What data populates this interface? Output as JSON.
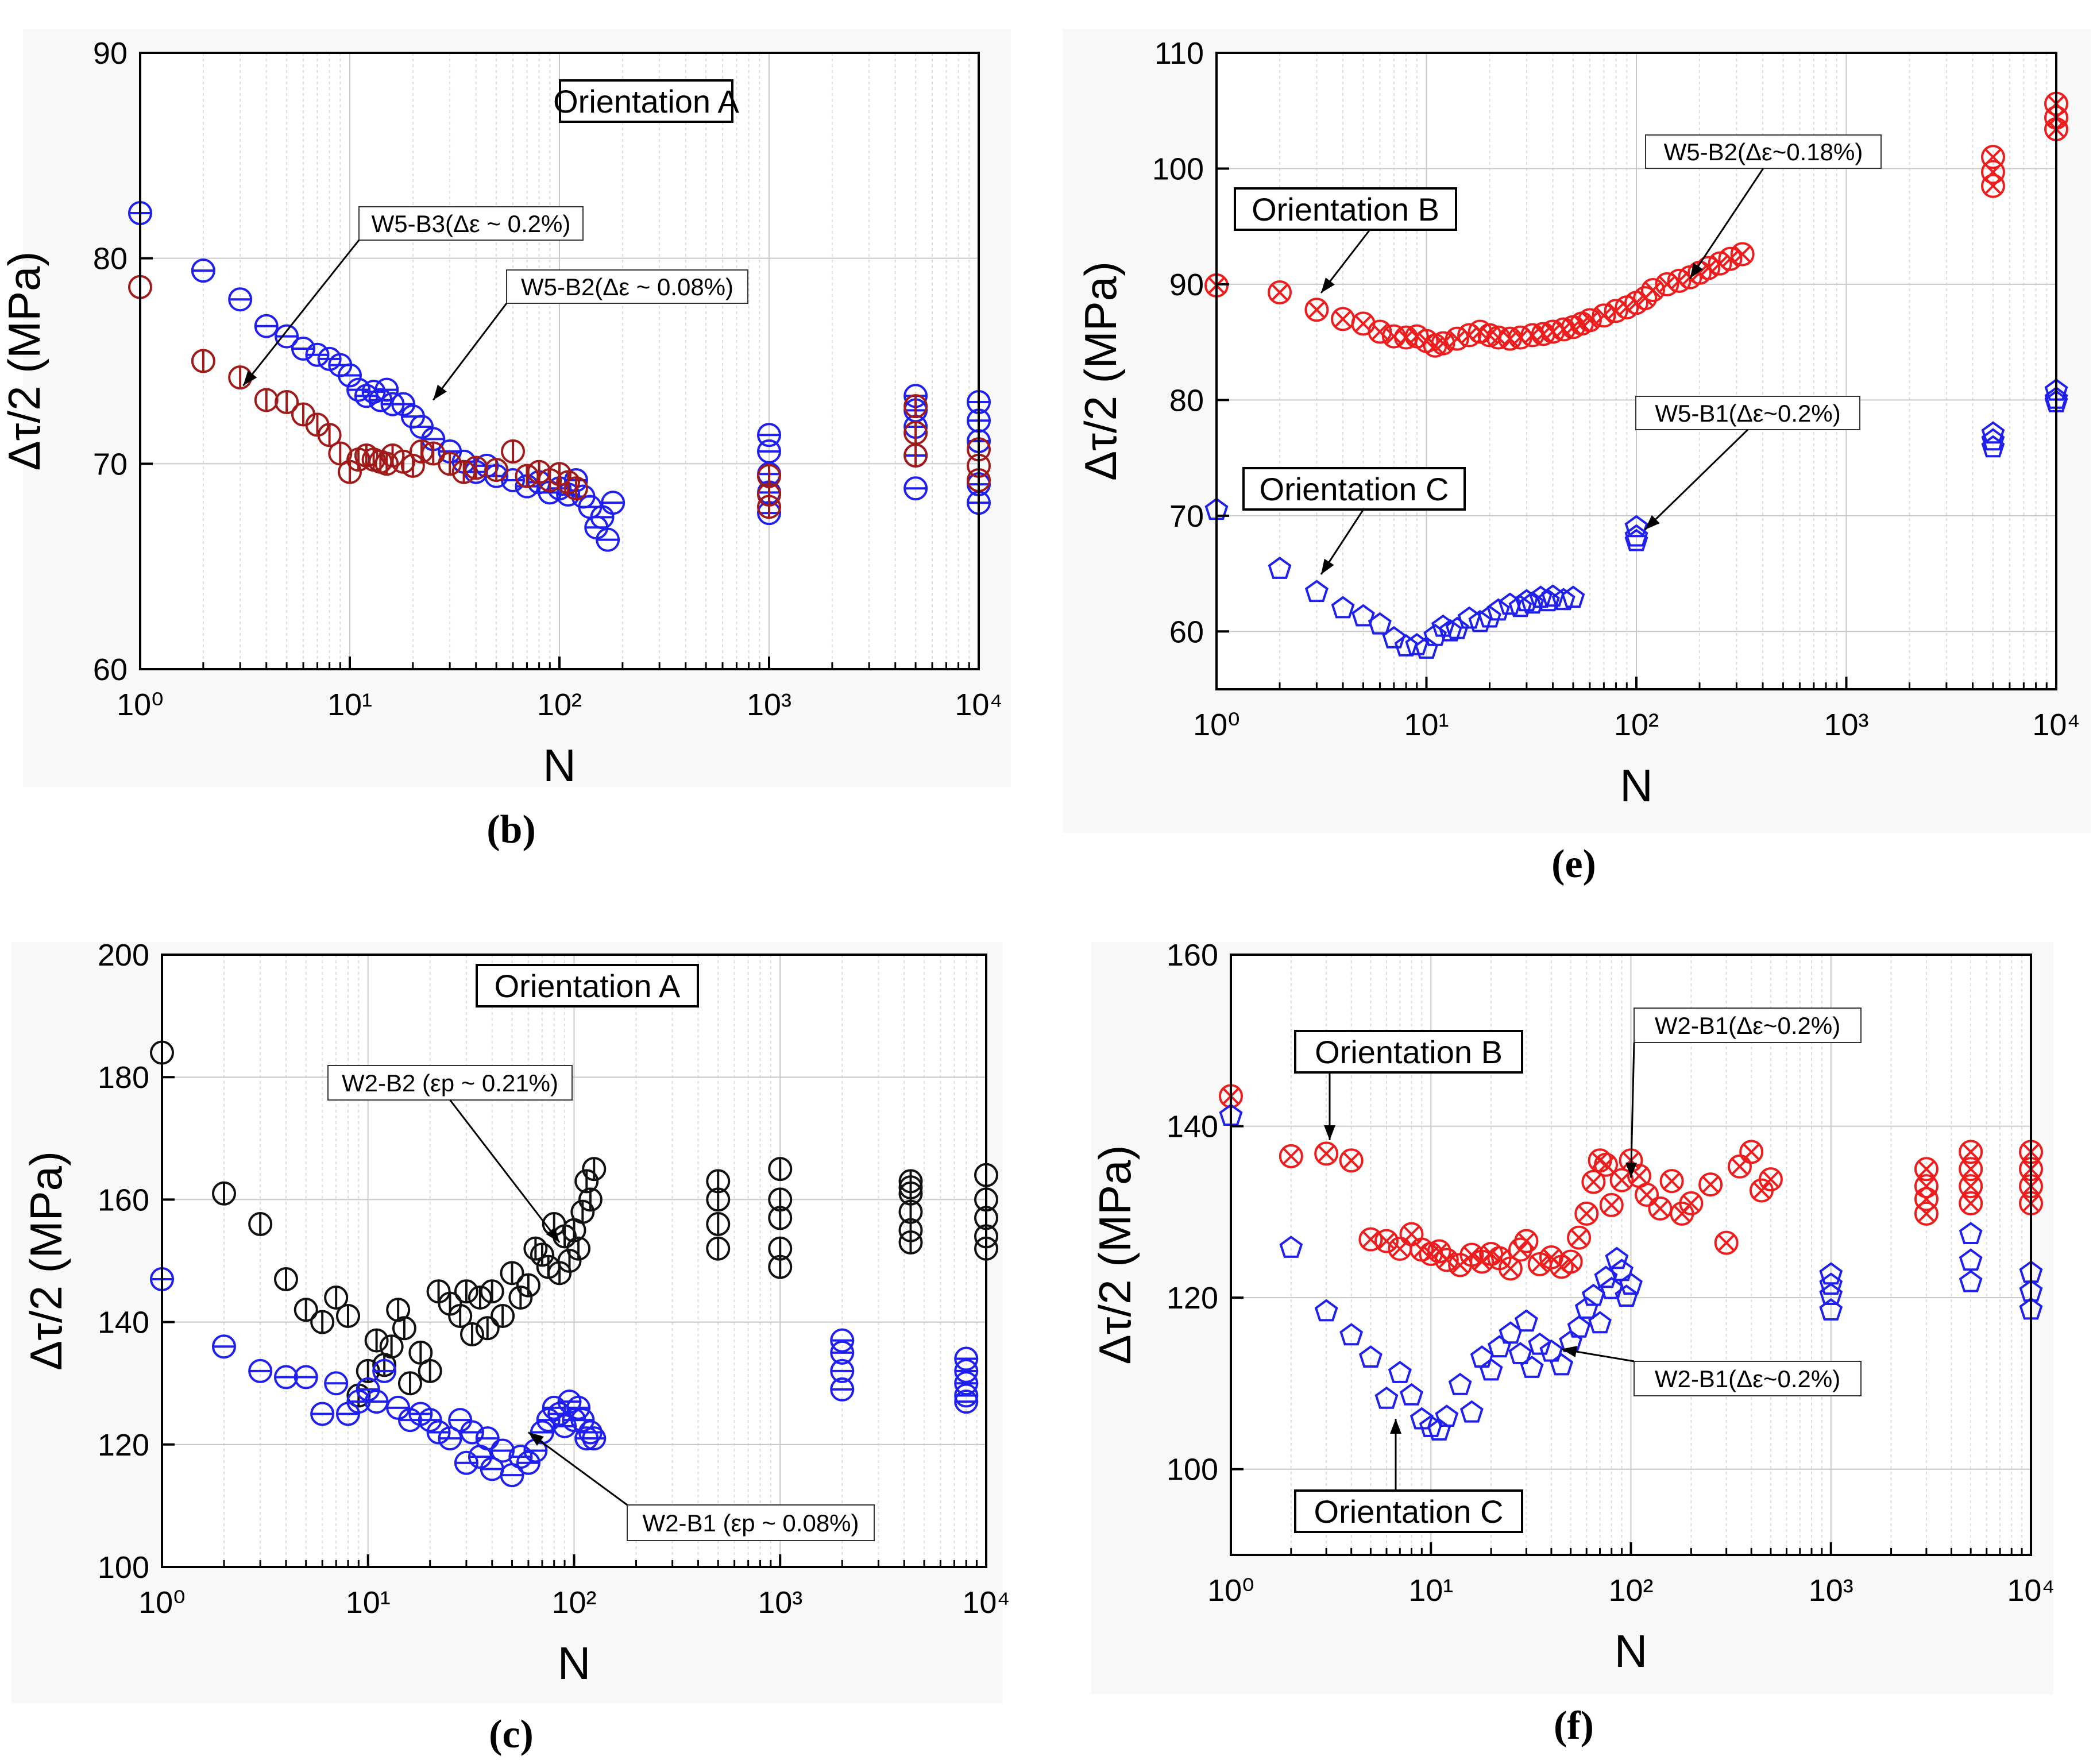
{
  "figure": {
    "captions": [
      "(b)",
      "(e)",
      "(c)",
      "(f)"
    ]
  },
  "chart_data": [
    {
      "id": "b",
      "caption": "(b)",
      "type": "scatter",
      "xscale": "log",
      "xlabel": "N",
      "ylabel": "Δτ/2 (MPa)",
      "xlim": [
        1,
        10000
      ],
      "ylim": [
        60,
        90
      ],
      "yticks": [
        60,
        70,
        80,
        90
      ],
      "xtick_labels": [
        "10⁰",
        "10¹",
        "10²",
        "10³",
        "10⁴"
      ],
      "grid": true,
      "boxed_label": "Orientation A",
      "annotations": [
        {
          "text": "W5-B3(Δε ~ 0.2%)",
          "points_to": [
            3.1,
            73.8
          ]
        },
        {
          "text": "W5-B2(Δε ~ 0.08%)",
          "points_to": [
            25,
            73.1
          ]
        }
      ],
      "series": [
        {
          "name": "W5-B2 (Δε ~ 0.08%)",
          "color": "#1f1fef",
          "marker": "circle-hbar",
          "x": [
            1,
            2,
            3,
            4,
            5,
            6,
            7,
            8,
            9,
            10,
            11,
            12,
            13,
            14,
            15,
            16,
            18,
            20,
            22,
            25,
            30,
            35,
            40,
            45,
            50,
            60,
            70,
            80,
            90,
            100,
            110,
            120,
            130,
            140,
            150,
            160,
            170,
            180,
            1000,
            1000,
            1000,
            1000,
            1000,
            5000,
            5000,
            5000,
            5000,
            5000,
            10000,
            10000,
            10000,
            10000,
            10000
          ],
          "y": [
            82.2,
            79.4,
            78.0,
            76.7,
            76.2,
            75.6,
            75.3,
            75.1,
            74.8,
            74.3,
            73.6,
            73.3,
            73.5,
            73.1,
            73.6,
            72.9,
            72.9,
            72.3,
            71.8,
            71.2,
            70.6,
            70.1,
            69.6,
            69.9,
            69.4,
            69.2,
            68.9,
            69.1,
            68.6,
            68.8,
            68.5,
            69.2,
            68.4,
            67.9,
            66.9,
            67.4,
            66.3,
            68.1,
            71.4,
            70.6,
            69.5,
            68.6,
            67.6,
            73.3,
            72.6,
            71.8,
            70.4,
            68.8,
            73.0,
            72.1,
            71.1,
            69.0,
            68.1
          ]
        },
        {
          "name": "W5-B3 (Δε ~ 0.2%)",
          "color": "#a01a1a",
          "marker": "circle-vbar",
          "x": [
            1,
            2,
            3,
            4,
            5,
            6,
            7,
            8,
            9,
            10,
            11,
            12,
            13,
            14,
            15,
            16,
            18,
            20,
            22,
            25,
            30,
            35,
            40,
            50,
            60,
            70,
            80,
            90,
            100,
            110,
            120,
            1000,
            1000,
            1000,
            5000,
            5000,
            5000,
            10000,
            10000,
            10000
          ],
          "y": [
            78.6,
            75.0,
            74.2,
            73.1,
            73.0,
            72.4,
            71.9,
            71.4,
            70.5,
            69.6,
            70.2,
            70.4,
            70.2,
            70.1,
            70.0,
            70.4,
            70.1,
            69.9,
            70.6,
            70.5,
            70.0,
            69.6,
            69.8,
            69.7,
            70.6,
            69.4,
            69.6,
            69.2,
            69.5,
            69.1,
            68.8,
            69.4,
            68.5,
            67.9,
            72.8,
            71.5,
            70.4,
            70.7,
            69.9,
            69.2
          ]
        }
      ]
    },
    {
      "id": "e",
      "caption": "(e)",
      "type": "scatter",
      "xscale": "log",
      "xlabel": "N",
      "ylabel": "Δτ/2 (MPa)",
      "xlim": [
        1,
        10000
      ],
      "ylim": [
        55,
        110
      ],
      "yticks": [
        60,
        70,
        80,
        90,
        100,
        110
      ],
      "xtick_labels": [
        "10⁰",
        "10¹",
        "10²",
        "10³",
        "10⁴"
      ],
      "grid": true,
      "boxed_labels": [
        "Orientation B",
        "Orientation C"
      ],
      "annotations": [
        {
          "text": "W5-B2(Δε~0.18%)",
          "points_to": [
            180,
            90.5
          ]
        },
        {
          "text": "W5-B1(Δε~0.2%)",
          "points_to": [
            110,
            68.8
          ]
        }
      ],
      "series": [
        {
          "name": "W5-B2 (Δε~0.18%)",
          "color": "#ee1c1c",
          "marker": "circle-x",
          "x": [
            1,
            2,
            3,
            4,
            5,
            6,
            7,
            8,
            9,
            10,
            11,
            12,
            14,
            16,
            18,
            20,
            22,
            25,
            28,
            32,
            36,
            40,
            45,
            50,
            55,
            60,
            70,
            80,
            90,
            100,
            110,
            120,
            140,
            160,
            180,
            200,
            220,
            250,
            280,
            320,
            5000,
            5000,
            5000,
            10000,
            10000,
            10000
          ],
          "y": [
            89.9,
            89.3,
            87.8,
            87.0,
            86.6,
            85.9,
            85.5,
            85.4,
            85.5,
            85.1,
            84.7,
            84.9,
            85.3,
            85.6,
            85.9,
            85.6,
            85.4,
            85.3,
            85.4,
            85.6,
            85.7,
            85.9,
            86.1,
            86.3,
            86.6,
            86.9,
            87.3,
            87.7,
            88.0,
            88.4,
            88.8,
            89.5,
            90.0,
            90.3,
            90.6,
            91.0,
            91.4,
            91.8,
            92.2,
            92.6,
            101.0,
            99.7,
            98.5,
            105.6,
            104.4,
            103.4
          ]
        },
        {
          "name": "W5-B1 (Δε~0.2%)",
          "color": "#1f1fef",
          "marker": "pentagon",
          "x": [
            1,
            2,
            3,
            4,
            5,
            6,
            7,
            8,
            9,
            10,
            11,
            12,
            13,
            14,
            16,
            18,
            20,
            22,
            25,
            28,
            30,
            32,
            35,
            38,
            40,
            45,
            50,
            100,
            100,
            100,
            5000,
            5000,
            5000,
            10000,
            10000,
            10000
          ],
          "y": [
            70.5,
            65.4,
            63.4,
            62.0,
            61.3,
            60.6,
            59.4,
            58.7,
            58.8,
            58.5,
            59.6,
            60.4,
            60.0,
            60.2,
            61.1,
            60.8,
            61.2,
            61.8,
            62.3,
            62.1,
            62.6,
            62.4,
            62.9,
            62.6,
            63.0,
            62.7,
            62.9,
            69.0,
            68.2,
            67.8,
            77.1,
            76.5,
            75.9,
            80.8,
            80.1,
            79.8
          ]
        }
      ]
    },
    {
      "id": "c",
      "caption": "(c)",
      "type": "scatter",
      "xscale": "log",
      "xlabel": "N",
      "ylabel": "Δτ/2 (MPa)",
      "xlim": [
        1,
        10000
      ],
      "ylim": [
        100,
        200
      ],
      "yticks": [
        100,
        120,
        140,
        160,
        180,
        200
      ],
      "xtick_labels": [
        "10⁰",
        "10¹",
        "10²",
        "10³",
        "10⁴"
      ],
      "grid": true,
      "boxed_label": "Orientation A",
      "annotations": [
        {
          "text": "W2-B2 (εp ~ 0.21%)",
          "points_to": [
            85,
            153
          ]
        },
        {
          "text": "W2-B1 (εp ~ 0.08%)",
          "points_to": [
            60,
            122
          ]
        }
      ],
      "series": [
        {
          "name": "W2-B2 (εp ~ 0.21%)",
          "color": "#111111",
          "marker": "circle-vbar",
          "x": [
            1,
            2,
            3,
            4,
            5,
            6,
            7,
            8,
            9,
            10,
            11,
            12,
            13,
            14,
            15,
            16,
            18,
            20,
            22,
            25,
            28,
            30,
            32,
            35,
            38,
            40,
            45,
            50,
            55,
            60,
            65,
            70,
            75,
            80,
            85,
            90,
            95,
            100,
            105,
            110,
            115,
            120,
            125,
            500,
            500,
            500,
            500,
            1000,
            1000,
            1000,
            1000,
            1000,
            4300,
            4300,
            4300,
            4300,
            4300,
            4300,
            10000,
            10000,
            10000,
            10000,
            10000
          ],
          "y": [
            184,
            161,
            156,
            147,
            142,
            140,
            144,
            141,
            128,
            132,
            137,
            133,
            136,
            142,
            139,
            130,
            135,
            132,
            145,
            143,
            141,
            145,
            138,
            144,
            139,
            145,
            141,
            148,
            144,
            146,
            152,
            151,
            149,
            156,
            148,
            154,
            150,
            155,
            152,
            158,
            163,
            160,
            165,
            163,
            160,
            156,
            152,
            165,
            160,
            157,
            152,
            149,
            163,
            161,
            158,
            155,
            153,
            162,
            164,
            160,
            157,
            154,
            152
          ]
        },
        {
          "name": "W2-B1 (εp ~ 0.08%)",
          "color": "#1f1fef",
          "marker": "circle-hbar",
          "x": [
            1,
            2,
            3,
            4,
            5,
            6,
            7,
            8,
            9,
            10,
            11,
            12,
            14,
            16,
            18,
            20,
            22,
            25,
            28,
            30,
            32,
            35,
            38,
            40,
            45,
            50,
            55,
            60,
            65,
            70,
            75,
            80,
            85,
            90,
            95,
            100,
            105,
            110,
            115,
            120,
            125,
            2000,
            2000,
            2000,
            2000,
            8000,
            8000,
            8000,
            8000,
            8000
          ],
          "y": [
            147,
            136,
            132,
            131,
            131,
            125,
            130,
            125,
            127,
            129,
            127,
            132,
            126,
            124,
            125,
            124,
            122,
            121,
            124,
            117,
            122,
            118,
            121,
            116,
            119,
            115,
            118,
            117,
            119,
            122,
            124,
            126,
            125,
            123,
            127,
            124,
            126,
            124,
            121,
            122,
            121,
            137,
            135,
            132,
            129,
            134,
            132,
            130,
            128,
            127
          ]
        }
      ]
    },
    {
      "id": "f",
      "caption": "(f)",
      "type": "scatter",
      "xscale": "log",
      "xlabel": "N",
      "ylabel": "Δτ/2 (MPa)",
      "xlim": [
        1,
        10000
      ],
      "ylim": [
        90,
        160
      ],
      "yticks": [
        100,
        120,
        140,
        160
      ],
      "xtick_labels": [
        "10⁰",
        "10¹",
        "10²",
        "10³",
        "10⁴"
      ],
      "grid": true,
      "boxed_labels": [
        "Orientation B",
        "Orientation C"
      ],
      "annotations": [
        {
          "text": "W2-B1(Δε~0.2%)",
          "points_to": [
            100,
            134
          ]
        },
        {
          "text": "W2-B1(Δε~0.2%)",
          "points_to": [
            45,
            114
          ]
        }
      ],
      "series": [
        {
          "name": "W2-B1 (Δε~0.2%) red",
          "color": "#ee1c1c",
          "marker": "circle-x",
          "x": [
            1,
            2,
            3,
            4,
            5,
            6,
            7,
            8,
            9,
            10,
            11,
            12,
            14,
            16,
            18,
            20,
            22,
            25,
            28,
            30,
            35,
            40,
            45,
            50,
            55,
            60,
            65,
            70,
            75,
            80,
            90,
            100,
            110,
            120,
            140,
            160,
            180,
            200,
            250,
            300,
            350,
            400,
            450,
            500,
            3000,
            3000,
            3000,
            3000,
            5000,
            5000,
            5000,
            5000,
            10000,
            10000,
            10000,
            10000
          ],
          "y": [
            143.5,
            136.5,
            136.8,
            136.0,
            126.8,
            126.6,
            125.7,
            127.4,
            125.6,
            125.1,
            125.4,
            124.4,
            123.8,
            125.0,
            124.2,
            125.1,
            124.6,
            123.4,
            125.6,
            126.6,
            123.9,
            124.7,
            123.6,
            124.2,
            127.0,
            129.8,
            133.5,
            136.0,
            135.5,
            130.8,
            133.7,
            136.0,
            134.2,
            132.0,
            130.4,
            133.6,
            129.8,
            131.0,
            133.2,
            126.4,
            135.3,
            137.0,
            132.5,
            133.8,
            135.0,
            133.0,
            131.5,
            129.8,
            137.0,
            135.0,
            133.0,
            131.0,
            137.0,
            135.0,
            133.0,
            131.0
          ]
        },
        {
          "name": "W2-B1 (Δε~0.2%) blue",
          "color": "#1f1fef",
          "marker": "pentagon",
          "x": [
            1,
            2,
            3,
            4,
            5,
            6,
            7,
            8,
            9,
            10,
            11,
            12,
            14,
            16,
            18,
            20,
            22,
            25,
            28,
            30,
            32,
            35,
            40,
            45,
            50,
            55,
            60,
            65,
            70,
            75,
            80,
            85,
            90,
            95,
            100,
            1000,
            1000,
            1000,
            1000,
            5000,
            5000,
            5000,
            10000,
            10000,
            10000
          ],
          "y": [
            141.2,
            125.8,
            118.4,
            115.6,
            113.0,
            108.2,
            111.2,
            108.6,
            105.8,
            104.9,
            104.5,
            106.1,
            109.8,
            106.6,
            113.0,
            111.5,
            114.2,
            115.8,
            113.4,
            117.2,
            111.8,
            114.5,
            113.7,
            112.1,
            114.8,
            116.5,
            118.7,
            120.2,
            117.0,
            122.3,
            121.0,
            124.5,
            123.1,
            120.1,
            121.5,
            122.7,
            121.5,
            120.3,
            118.5,
            127.4,
            124.3,
            121.8,
            122.9,
            120.7,
            118.6
          ]
        }
      ]
    }
  ]
}
